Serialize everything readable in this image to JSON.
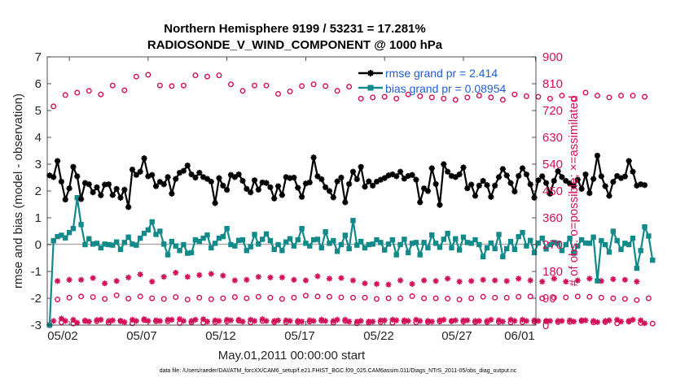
{
  "colors": {
    "rmse": "#000000",
    "bias": "#138a8a",
    "obs": "#d40f5a",
    "legend_text": "#1f5fd6",
    "zero_line": "#aaaaaa"
  },
  "chart_data": {
    "type": "line",
    "title": "Northern Hemisphere 9199 / 53231 = 17.281%",
    "subtitle": "RADIOSONDE_V_WIND_COMPONENT @ 1000 hPa",
    "xlabel": "May.01,2011 00:00:00 start",
    "ylabel": "rmse and bias (model - observation)",
    "ylabel_right": "# of obs: o=possible; ×=assimilated",
    "footer": "data file: /Users/raeder/DAI/ATM_forcXX/CAM6_setup/f.e21.FHIST_BGC.f09_025.CAM6assim.011/Diags_NTrS_2011-05/obs_diag_output.nc",
    "ylim": [
      -3,
      7
    ],
    "ylim_right": [
      0,
      900
    ],
    "xlim": [
      0.6,
      31.6
    ],
    "yticks": [
      "-3",
      "-2",
      "-1",
      "0",
      "1",
      "2",
      "3",
      "4",
      "5",
      "6",
      "7"
    ],
    "yticks_right": [
      "0",
      "90",
      "180",
      "270",
      "360",
      "450",
      "540",
      "630",
      "720",
      "810",
      "900"
    ],
    "xticks": [
      {
        "label": "05/02",
        "x": 2
      },
      {
        "label": "05/07",
        "x": 7
      },
      {
        "label": "05/12",
        "x": 12
      },
      {
        "label": "05/17",
        "x": 17
      },
      {
        "label": "05/22",
        "x": 22
      },
      {
        "label": "05/27",
        "x": 27
      },
      {
        "label": "06/01",
        "x": 32
      }
    ],
    "x_start": 0.75,
    "x_step": 0.25,
    "series": [
      {
        "name": "rmse grand pr = 2.414",
        "axis": "left",
        "values": [
          2.58,
          2.52,
          3.12,
          2.35,
          1.68,
          2.1,
          2.9,
          2.55,
          1.7,
          2.3,
          2.25,
          1.95,
          2.14,
          1.84,
          2.24,
          2.25,
          1.85,
          2.08,
          1.75,
          2.05,
          1.4,
          2.8,
          2.6,
          2.72,
          3.22,
          2.55,
          2.6,
          2.18,
          2.34,
          2.25,
          2.52,
          1.9,
          2.45,
          2.68,
          2.75,
          2.95,
          2.62,
          2.5,
          2.68,
          2.52,
          2.45,
          2.35,
          1.55,
          2.48,
          2.2,
          2.04,
          2.6,
          2.52,
          2.62,
          2.38,
          2.08,
          1.95,
          2.4,
          2.05,
          2.32,
          2.3,
          2.14,
          1.72,
          2.18,
          1.85,
          2.52,
          2.48,
          2.5,
          2.12,
          1.78,
          2.28,
          2.32,
          3.25,
          2.55,
          2.44,
          2.14,
          2.0,
          1.76,
          2.36,
          2.5,
          1.58,
          2.26,
          2.72,
          2.44,
          2.9,
          2.16,
          2.36,
          2.2,
          2.35,
          2.42,
          2.48,
          2.58,
          2.62,
          2.55,
          2.72,
          2.46,
          2.56,
          2.6,
          2.42,
          1.58,
          2.1,
          2.0,
          2.85,
          2.26,
          1.48,
          3.0,
          2.72,
          2.56,
          2.52,
          2.62,
          2.88,
          2.1,
          2.24,
          1.82,
          2.2,
          2.38,
          2.22,
          1.78,
          2.2,
          2.52,
          2.82,
          2.58,
          2.3,
          1.98,
          2.56,
          2.85,
          2.62,
          2.25,
          1.75,
          2.4,
          2.55,
          2.3,
          1.9,
          2.38,
          2.74,
          2.52,
          2.38,
          2.28,
          2.18,
          2.42,
          2.08,
          2.62,
          1.92,
          2.45,
          3.32,
          2.55,
          2.18,
          1.82,
          2.34,
          2.56,
          2.48,
          2.54,
          3.12,
          2.72,
          2.2,
          2.25,
          2.22
        ]
      },
      {
        "name": "bias grand pr = 0.08954",
        "axis": "left",
        "values": [
          -3.0,
          0.15,
          0.3,
          0.35,
          0.25,
          0.45,
          0.6,
          1.75,
          0.75,
          0.0,
          0.22,
          0.02,
          0.05,
          -0.12,
          0.02,
          0.0,
          -0.02,
          0.1,
          -0.18,
          0.08,
          0.28,
          0.02,
          -0.02,
          0.24,
          0.42,
          0.55,
          0.85,
          0.38,
          0.5,
          0.02,
          -0.38,
          0.12,
          -0.05,
          -0.22,
          0.0,
          -0.32,
          -0.3,
          0.18,
          0.12,
          0.24,
          0.36,
          -0.12,
          0.05,
          0.24,
          0.3,
          0.6,
          0.0,
          -0.05,
          0.16,
          0.18,
          -0.22,
          -0.08,
          0.38,
          0.02,
          0.2,
          0.4,
          0.15,
          -0.18,
          0.0,
          -0.22,
          0.1,
          0.22,
          -0.05,
          0.18,
          0.6,
          0.05,
          -0.05,
          0.18,
          0.2,
          -0.12,
          0.48,
          0.05,
          0.15,
          -0.25,
          0.0,
          0.35,
          -0.15,
          0.9,
          -0.02,
          0.12,
          -0.12,
          0.0,
          0.02,
          0.18,
          0.08,
          -0.2,
          0.02,
          0.18,
          -0.38,
          0.0,
          0.2,
          -0.3,
          0.05,
          0.08,
          -0.38,
          0.08,
          -0.12,
          0.36,
          0.05,
          -0.1,
          0.2,
          0.42,
          -0.12,
          0.22,
          -0.2,
          0.28,
          0.08,
          0.05,
          0.18,
          0.0,
          -0.45,
          -0.12,
          0.06,
          -0.15,
          0.38,
          -0.45,
          -0.15,
          0.12,
          -0.18,
          0.3,
          0.45,
          -0.05,
          0.16,
          -0.3,
          0.06,
          0.24,
          -0.16,
          0.0,
          0.08,
          0.05,
          -0.22,
          0.0,
          0.24,
          -0.32,
          -0.05,
          0.18,
          0.06,
          0.05,
          0.28,
          -1.35,
          0.15,
          0.0,
          -0.28,
          0.5,
          0.15,
          -0.18,
          0.05,
          0.0,
          0.24,
          -0.88,
          -0.22,
          0.66,
          0.32,
          -0.58
        ]
      },
      {
        "name": "possible obs",
        "axis": "right",
        "values": [
          0,
          734,
          86,
          9,
          772,
          92,
          5,
          780,
          96,
          14,
          786,
          94,
          13,
          774,
          88,
          8,
          804,
          100,
          14,
          788,
          89,
          6,
          834,
          96,
          17,
          840,
          90,
          13,
          804,
          88,
          13,
          802,
          94,
          7,
          804,
          86,
          9,
          838,
          92,
          8,
          834,
          87,
          10,
          838,
          90,
          12,
          808,
          94,
          15,
          786,
          90,
          9,
          804,
          95,
          14,
          804,
          92,
          10,
          776,
          88,
          10,
          784,
          92,
          11,
          802,
          99,
          12,
          808,
          96,
          15,
          802,
          95,
          8,
          786,
          93,
          14,
          800,
          92,
          6,
          760,
          92,
          8,
          764,
          88,
          10,
          766,
          90,
          8,
          760,
          90,
          12,
          774,
          97,
          9,
          768,
          90,
          11,
          764,
          90,
          12,
          760,
          89,
          13,
          756,
          86,
          12,
          764,
          90,
          10,
          770,
          95,
          10,
          764,
          92,
          11,
          756,
          92,
          9,
          774,
          95,
          10,
          768,
          96,
          12,
          766,
          90,
          13,
          760,
          92,
          10,
          770,
          93,
          11,
          760,
          96,
          14,
          780,
          95,
          9,
          770,
          92,
          10,
          764,
          90,
          6,
          770,
          88,
          12,
          770,
          84,
          7,
          766,
          90,
          5
        ]
      },
      {
        "name": "assimilated obs",
        "axis": "right",
        "values": [
          0,
          14,
          148,
          22,
          14,
          152,
          18,
          8,
          152,
          15,
          12,
          158,
          17,
          18,
          140,
          14,
          16,
          148,
          14,
          10,
          160,
          18,
          14,
          170,
          20,
          14,
          146,
          16,
          14,
          162,
          18,
          18,
          176,
          20,
          14,
          162,
          14,
          18,
          168,
          20,
          12,
          172,
          16,
          14,
          166,
          18,
          16,
          150,
          18,
          12,
          152,
          18,
          14,
          162,
          20,
          14,
          160,
          14,
          16,
          160,
          16,
          14,
          152,
          14,
          12,
          150,
          16,
          14,
          164,
          18,
          14,
          156,
          14,
          18,
          158,
          18,
          12,
          150,
          12,
          14,
          140,
          12,
          12,
          138,
          16,
          16,
          136,
          18,
          16,
          150,
          16,
          14,
          138,
          18,
          14,
          150,
          14,
          12,
          148,
          16,
          18,
          156,
          14,
          16,
          146,
          16,
          16,
          148,
          14,
          14,
          152,
          14,
          18,
          150,
          16,
          12,
          148,
          18,
          14,
          156,
          18,
          14,
          150,
          16,
          14,
          146,
          14,
          14,
          156,
          14,
          14,
          146,
          16,
          12,
          150,
          16,
          16,
          156,
          14,
          10,
          148,
          14,
          16,
          154,
          18,
          12,
          152,
          14,
          18,
          146,
          16,
          6
        ]
      }
    ]
  }
}
